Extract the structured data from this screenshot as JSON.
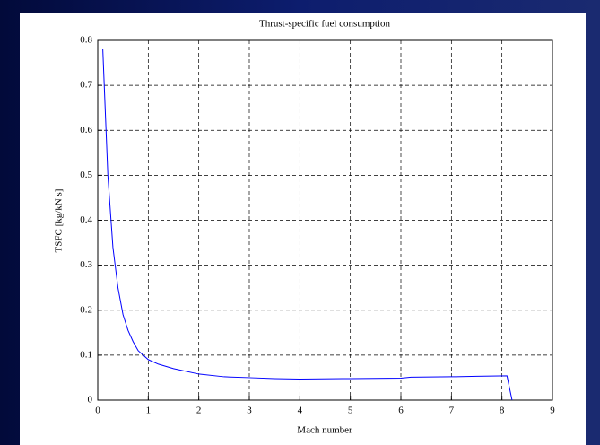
{
  "chart_data": {
    "type": "line",
    "title": "Thrust-specific fuel consumption",
    "xlabel": "Mach number",
    "ylabel": "TSFC [kg/kN s]",
    "x": [
      0.1,
      0.2,
      0.3,
      0.4,
      0.5,
      0.6,
      0.7,
      0.8,
      0.9,
      1.0,
      1.2,
      1.5,
      2.0,
      2.5,
      3.0,
      3.5,
      4.0,
      5.0,
      6.0,
      6.2,
      7.0,
      7.5,
      8.1,
      8.2
    ],
    "series": [
      {
        "color": "#0000ff",
        "values": [
          0.78,
          0.5,
          0.34,
          0.25,
          0.19,
          0.155,
          0.13,
          0.11,
          0.1,
          0.09,
          0.08,
          0.07,
          0.058,
          0.052,
          0.05,
          0.048,
          0.047,
          0.048,
          0.049,
          0.051,
          0.052,
          0.053,
          0.054,
          0
        ]
      }
    ],
    "xlim": [
      0,
      9
    ],
    "ylim": [
      0,
      0.8
    ],
    "xticks": [
      0,
      1,
      2,
      3,
      4,
      5,
      6,
      7,
      8,
      9
    ],
    "yticks": [
      0,
      0.1,
      0.2,
      0.3,
      0.4,
      0.5,
      0.6,
      0.7,
      0.8
    ],
    "grid": true
  }
}
